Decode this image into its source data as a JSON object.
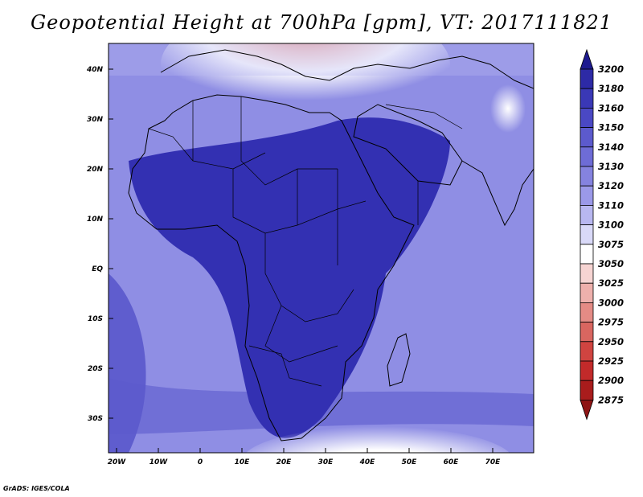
{
  "title": "Geopotential Height at 700hPa [gpm], VT: 2017111821",
  "credit": "GrADS: IGES/COLA",
  "map": {
    "lat_labels": [
      "40N",
      "30N",
      "20N",
      "10N",
      "EQ",
      "10S",
      "20S",
      "30S"
    ],
    "lon_labels": [
      "20W",
      "10W",
      "0",
      "10E",
      "20E",
      "30E",
      "40E",
      "50E",
      "60E",
      "70E"
    ]
  },
  "colorbar": {
    "levels": [
      "3200",
      "3180",
      "3160",
      "3150",
      "3140",
      "3130",
      "3120",
      "3110",
      "3100",
      "3075",
      "3050",
      "3025",
      "3000",
      "2975",
      "2950",
      "2925",
      "2900",
      "2875"
    ],
    "colors": [
      "#1e1a8f",
      "#2d2aa6",
      "#3a38b6",
      "#4a48c4",
      "#5c5acd",
      "#6e6cd6",
      "#8583df",
      "#9b99e8",
      "#b8b7f0",
      "#d9d9f8",
      "#ffffff",
      "#f6d4d2",
      "#eeb0ac",
      "#e48b85",
      "#d96660",
      "#d04440",
      "#c22a2a",
      "#a91c1c",
      "#8e1515"
    ]
  },
  "colors": {
    "ocean": "#8f8ee4",
    "land": "#3330b2",
    "border": "#000000"
  }
}
